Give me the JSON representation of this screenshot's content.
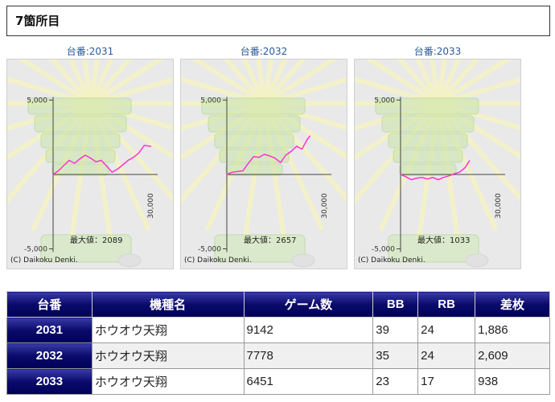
{
  "header": {
    "title": "7箇所目"
  },
  "graphs": [
    {
      "title": "台番:2031",
      "max_label": "最大値：2089",
      "copyright": "(C) Daikoku Denki.",
      "chart_data": {
        "type": "line",
        "ylim": [
          -5000,
          5000
        ],
        "xlim": [
          0,
          30000
        ],
        "ytick_labels": [
          "5,000",
          "-5,000"
        ],
        "xtick_label": "30,000",
        "x": [
          0,
          500,
          1000,
          1500,
          2000,
          2500,
          3000,
          3500,
          4000,
          4500,
          5000,
          5500,
          6000,
          6500,
          7000,
          7500,
          8000,
          8500,
          9142
        ],
        "y": [
          0,
          250,
          600,
          950,
          750,
          1050,
          1300,
          1100,
          850,
          950,
          550,
          150,
          350,
          650,
          950,
          1150,
          1450,
          1950,
          1886
        ]
      }
    },
    {
      "title": "台番:2032",
      "max_label": "最大値：2657",
      "copyright": "(C) Daikoku Denki.",
      "chart_data": {
        "type": "line",
        "ylim": [
          -5000,
          5000
        ],
        "xlim": [
          0,
          30000
        ],
        "ytick_labels": [
          "5,000",
          "-5,000"
        ],
        "xtick_label": "30,000",
        "x": [
          0,
          500,
          1000,
          1500,
          2000,
          2500,
          3000,
          3500,
          4000,
          4500,
          5000,
          5500,
          6000,
          6500,
          7000,
          7500,
          7778
        ],
        "y": [
          0,
          150,
          200,
          250,
          750,
          1200,
          1150,
          1350,
          1250,
          1100,
          800,
          1300,
          1550,
          1900,
          1700,
          2350,
          2609
        ]
      }
    },
    {
      "title": "台番:2033",
      "max_label": "最大値：1033",
      "copyright": "(C) Daikoku Denki.",
      "chart_data": {
        "type": "line",
        "ylim": [
          -5000,
          5000
        ],
        "xlim": [
          0,
          30000
        ],
        "ytick_labels": [
          "5,000",
          "-5,000"
        ],
        "xtick_label": "30,000",
        "x": [
          0,
          500,
          1000,
          1500,
          2000,
          2500,
          3000,
          3500,
          4000,
          4500,
          5000,
          5500,
          6000,
          6451
        ],
        "y": [
          0,
          -150,
          -350,
          -250,
          -200,
          -300,
          -200,
          -350,
          -200,
          -100,
          50,
          150,
          450,
          938
        ]
      }
    }
  ],
  "table": {
    "headers": [
      "台番",
      "機種名",
      "ゲーム数",
      "BB",
      "RB",
      "差枚"
    ],
    "rows": [
      [
        "2031",
        "ホウオウ天翔",
        "9142",
        "39",
        "24",
        "1,886"
      ],
      [
        "2032",
        "ホウオウ天翔",
        "7778",
        "35",
        "24",
        "2,609"
      ],
      [
        "2033",
        "ホウオウ天翔",
        "6451",
        "23",
        "17",
        "938"
      ]
    ]
  },
  "colors": {
    "line": "#ff33cc",
    "header_bg": "#0a0a6a",
    "title_text": "#2a5a9a",
    "frame_bg": "#e9e9e9"
  }
}
